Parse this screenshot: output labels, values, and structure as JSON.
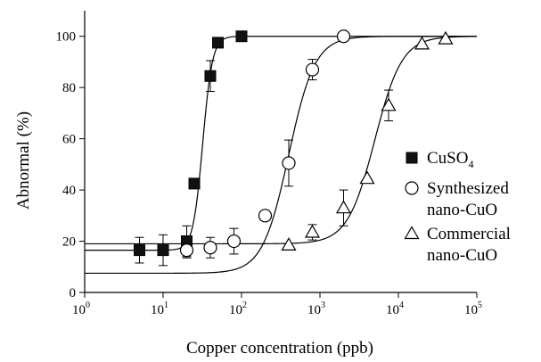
{
  "chart_data": {
    "type": "scatter",
    "title": "",
    "xlabel": "Copper concentration (ppb)",
    "ylabel": "Abnormal (%)",
    "x_scale": "log10",
    "xlim": [
      1,
      100000
    ],
    "ylim": [
      0,
      110
    ],
    "x_ticks": [
      {
        "base": "10",
        "exp": "0",
        "value": 1
      },
      {
        "base": "10",
        "exp": "1",
        "value": 10
      },
      {
        "base": "10",
        "exp": "2",
        "value": 100
      },
      {
        "base": "10",
        "exp": "3",
        "value": 1000
      },
      {
        "base": "10",
        "exp": "4",
        "value": 10000
      },
      {
        "base": "10",
        "exp": "5",
        "value": 100000
      }
    ],
    "y_ticks": [
      "0",
      "20",
      "40",
      "60",
      "80",
      "100"
    ],
    "legend_position": "right",
    "series": [
      {
        "name": "CuSO",
        "name_subscript": "4",
        "marker": "filled-square",
        "points": [
          {
            "x": 5,
            "y": 16.5,
            "err": 5
          },
          {
            "x": 10,
            "y": 16.5,
            "err": 6
          },
          {
            "x": 20,
            "y": 20,
            "err": 6
          },
          {
            "x": 25,
            "y": 42.5,
            "err": 0
          },
          {
            "x": 40,
            "y": 84.5,
            "err": 6
          },
          {
            "x": 50,
            "y": 97.5,
            "err": 0
          },
          {
            "x": 100,
            "y": 100,
            "err": 0
          }
        ],
        "fit": {
          "bottom": 16.5,
          "top": 100,
          "ec50": 32,
          "hill": 7
        }
      },
      {
        "name": "Synthesized",
        "name_line2": "nano-CuO",
        "marker": "open-circle",
        "points": [
          {
            "x": 20,
            "y": 16.5,
            "err": 3
          },
          {
            "x": 40,
            "y": 17.5,
            "err": 4
          },
          {
            "x": 80,
            "y": 20,
            "err": 5
          },
          {
            "x": 200,
            "y": 30,
            "err": 0
          },
          {
            "x": 400,
            "y": 50.5,
            "err": 9
          },
          {
            "x": 800,
            "y": 87,
            "err": 4
          },
          {
            "x": 2000,
            "y": 100,
            "err": 0
          }
        ],
        "fit": {
          "bottom": 7.5,
          "top": 100,
          "ec50": 400,
          "hill": 2.6
        }
      },
      {
        "name": "Commercial",
        "name_line2": "nano-CuO",
        "marker": "open-triangle",
        "points": [
          {
            "x": 400,
            "y": 18.5,
            "err": 0
          },
          {
            "x": 800,
            "y": 23.5,
            "err": 3
          },
          {
            "x": 2000,
            "y": 33,
            "err": 7
          },
          {
            "x": 4000,
            "y": 44.5,
            "err": 0
          },
          {
            "x": 7500,
            "y": 73,
            "err": 6
          },
          {
            "x": 20000,
            "y": 97,
            "err": 0
          },
          {
            "x": 40000,
            "y": 99,
            "err": 0
          }
        ],
        "fit": {
          "bottom": 19,
          "top": 100,
          "ec50": 5000,
          "hill": 2.5
        }
      }
    ]
  }
}
